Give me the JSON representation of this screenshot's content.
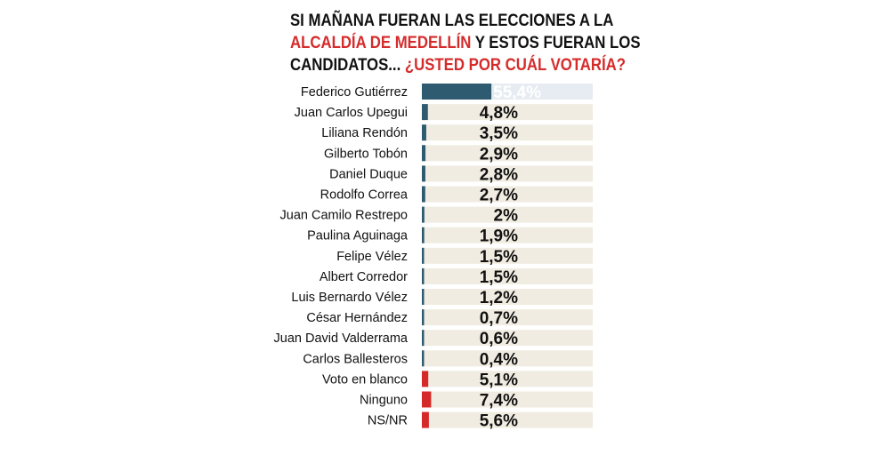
{
  "title": {
    "part1": "SI MAÑANA FUERAN LAS ELECCIONES A LA",
    "part2_highlight": "ALCALDÍA DE MEDELLÍN",
    "part2_rest": " Y ESTOS FUERAN LOS",
    "part3": "CANDIDATOS... ",
    "part3_highlight": "¿USTED POR CUÁL VOTARÍA?"
  },
  "colors": {
    "candidate_bar": "#2e5b6f",
    "other_bar": "#d42a2a",
    "track": "#f1ece1",
    "track_first": "#e6ecf1",
    "highlight_text": "#d52b2b"
  },
  "chart_data": {
    "type": "bar",
    "orientation": "horizontal",
    "value_unit": "%",
    "xlim": [
      0,
      100
    ],
    "categories": [
      "Federico Gutiérrez",
      "Juan Carlos Upegui",
      "Liliana Rendón",
      "Gilberto Tobón",
      "Daniel Duque",
      "Rodolfo Correa",
      "Juan Camilo Restrepo",
      "Paulina Aguinaga",
      "Felipe Vélez",
      "Albert Corredor",
      "Luis Bernardo Vélez",
      "César Hernández",
      "Juan David Valderrama",
      "Carlos Ballesteros",
      "Voto en blanco",
      "Ninguno",
      "NS/NR"
    ],
    "values": [
      55.4,
      4.8,
      3.5,
      2.9,
      2.8,
      2.7,
      2,
      1.9,
      1.5,
      1.5,
      1.2,
      0.7,
      0.6,
      0.4,
      5.1,
      7.4,
      5.6
    ],
    "labels": [
      "55,4%",
      "4,8%",
      "3,5%",
      "2,9%",
      "2,8%",
      "2,7%",
      "2%",
      "1,9%",
      "1,5%",
      "1,5%",
      "1,2%",
      "0,7%",
      "0,6%",
      "0,4%",
      "5,1%",
      "7,4%",
      "5,6%"
    ],
    "groups": [
      "candidate",
      "candidate",
      "candidate",
      "candidate",
      "candidate",
      "candidate",
      "candidate",
      "candidate",
      "candidate",
      "candidate",
      "candidate",
      "candidate",
      "candidate",
      "candidate",
      "other",
      "other",
      "other"
    ]
  }
}
